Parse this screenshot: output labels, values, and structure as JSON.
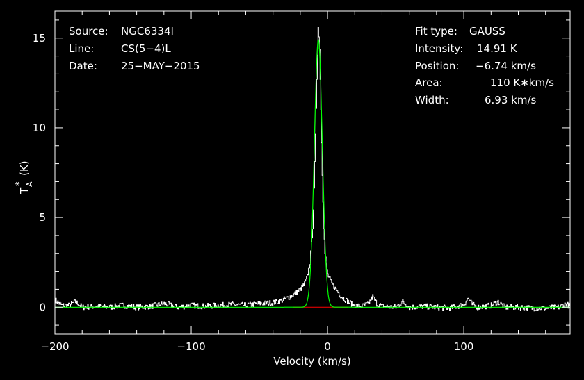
{
  "chart_data": {
    "type": "line",
    "xlabel": "Velocity (km/s)",
    "ylabel_main": "T",
    "ylabel_sub": "A",
    "ylabel_sup": "*",
    "ylabel_unit": "(K)",
    "xlim": [
      -200,
      178
    ],
    "ylim": [
      -1.5,
      16.5
    ],
    "xticks": [
      -200,
      -100,
      0,
      100
    ],
    "xtick_labels": [
      "−200",
      "−100",
      "0",
      "100"
    ],
    "yticks": [
      0,
      5,
      10,
      15
    ],
    "ytick_labels": [
      "0",
      "5",
      "10",
      "15"
    ],
    "grid": false,
    "info_left": [
      {
        "key": "Source:",
        "value": "NGC6334I"
      },
      {
        "key": "Line:",
        "value": "CS(5−4)L"
      },
      {
        "key": "Date:",
        "value": "25−MAY−2015"
      }
    ],
    "info_right": [
      {
        "key": "Fit type:",
        "value": "GAUSS"
      },
      {
        "key": "Intensity:",
        "value": "14.91 K"
      },
      {
        "key": "Position:",
        "value": "−6.74 km/s"
      },
      {
        "key": "Area:",
        "value": "110 K∗km/s"
      },
      {
        "key": "Width:",
        "value": "6.93 km/s"
      }
    ],
    "spectrum": {
      "color": "#ffffff",
      "x": [
        -200,
        -195,
        -190,
        -185,
        -180,
        -170,
        -160,
        -150,
        -140,
        -130,
        -120,
        -110,
        -100,
        -90,
        -80,
        -70,
        -60,
        -50,
        -40,
        -35,
        -30,
        -25,
        -20,
        -17,
        -15,
        -13,
        -11,
        -10,
        -9,
        -8,
        -7,
        -6,
        -5,
        -4,
        -3,
        -2,
        0,
        3,
        6,
        10,
        15,
        20,
        25,
        30,
        33,
        36,
        40,
        50,
        55,
        60,
        70,
        80,
        90,
        100,
        103,
        106,
        110,
        120,
        125,
        130,
        140,
        150,
        160,
        170,
        175,
        178
      ],
      "y": [
        0.4,
        0.1,
        0.1,
        0.3,
        0.0,
        0.05,
        0.0,
        0.1,
        0.0,
        0.05,
        0.2,
        0.0,
        0.1,
        0.05,
        0.1,
        0.15,
        0.1,
        0.2,
        0.25,
        0.35,
        0.5,
        0.7,
        1.0,
        1.3,
        1.7,
        2.5,
        4.5,
        6.5,
        9.5,
        12.8,
        15.6,
        14.5,
        11.0,
        7.5,
        4.5,
        3.0,
        1.8,
        1.3,
        1.0,
        0.6,
        0.3,
        0.1,
        0.05,
        0.2,
        0.6,
        0.2,
        0.05,
        0.0,
        0.3,
        0.0,
        0.05,
        0.0,
        -0.05,
        0.15,
        0.5,
        0.15,
        0.0,
        0.1,
        0.3,
        0.0,
        0.0,
        -0.05,
        -0.05,
        0.0,
        0.2,
        0.0
      ]
    },
    "fit": {
      "color": "#00ff00",
      "amplitude": 14.91,
      "center": -6.74,
      "fwhm": 6.93,
      "baseline_color": "#ff0000",
      "baseline_range": [
        -25,
        15
      ]
    }
  }
}
